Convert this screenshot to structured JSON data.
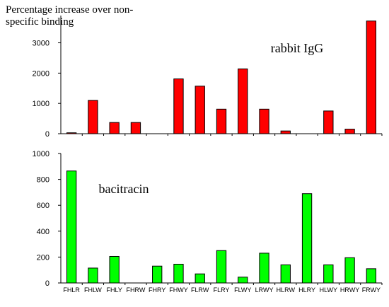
{
  "figure": {
    "ylabel": "Percentage increase over non-specific binding"
  },
  "chart_data": [
    {
      "type": "bar",
      "title": "rabbit IgG",
      "categories": [
        "FHLR",
        "FHLW",
        "FHLY",
        "FHRW",
        "FHRY",
        "FHWY",
        "FLRW",
        "FLRY",
        "FLWY",
        "LRWY",
        "HLRW",
        "HLRY",
        "HLWY",
        "HRWY",
        "FRWY"
      ],
      "values": [
        30,
        1100,
        370,
        370,
        0,
        1810,
        1570,
        810,
        2140,
        810,
        90,
        0,
        750,
        150,
        3720
      ],
      "ylim": [
        0,
        3900
      ],
      "yticks": [
        0,
        1000,
        2000,
        3000
      ],
      "color": "#ff0000",
      "grid": false,
      "legend": "none"
    },
    {
      "type": "bar",
      "title": "bacitracin",
      "categories": [
        "FHLR",
        "FHLW",
        "FHLY",
        "FHRW",
        "FHRY",
        "FHWY",
        "FLRW",
        "FLRY",
        "FLWY",
        "LRWY",
        "HLRW",
        "HLRY",
        "HLWY",
        "HRWY",
        "FRWY"
      ],
      "values": [
        865,
        115,
        205,
        0,
        130,
        145,
        70,
        250,
        45,
        230,
        140,
        690,
        140,
        195,
        110
      ],
      "ylim": [
        0,
        1000
      ],
      "yticks": [
        0,
        200,
        400,
        600,
        800,
        1000
      ],
      "color": "#00ff00",
      "grid": false,
      "legend": "none"
    }
  ]
}
